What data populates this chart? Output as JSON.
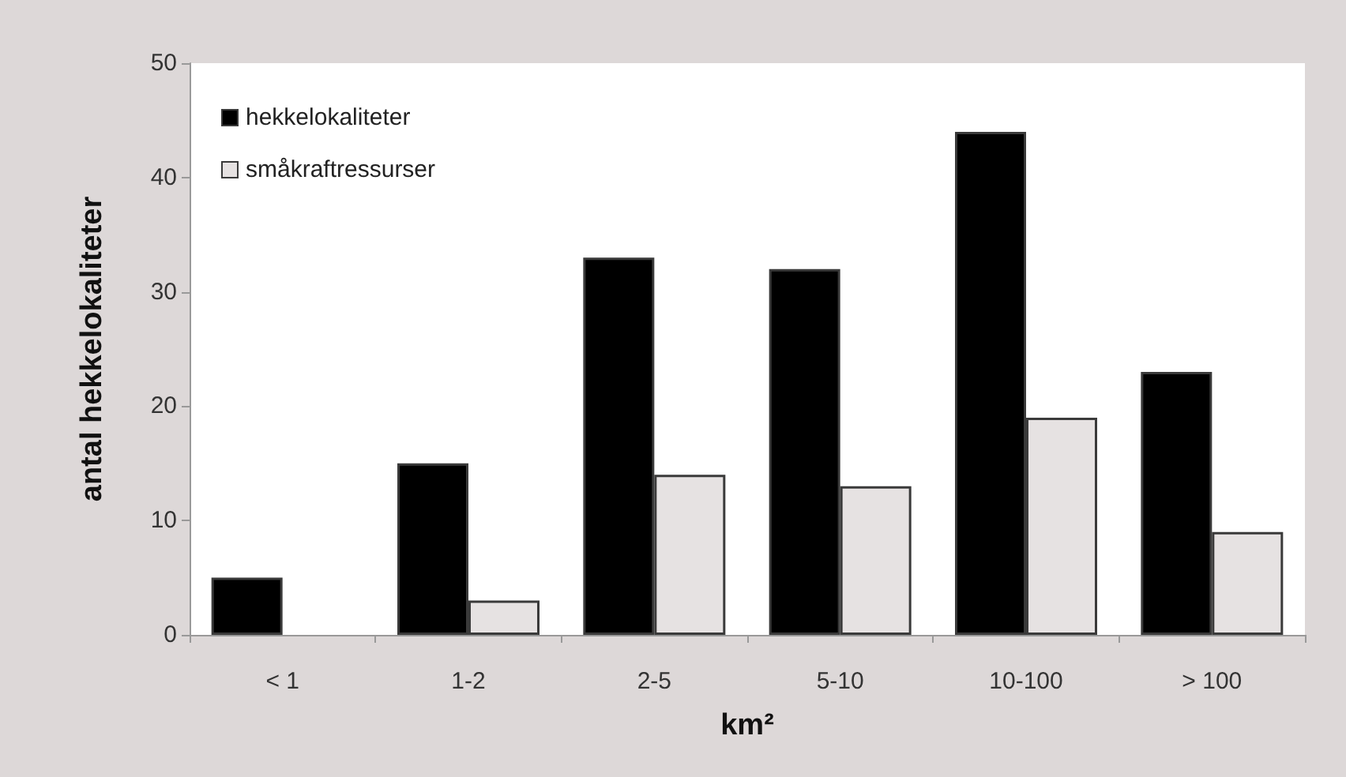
{
  "chart_data": {
    "type": "bar",
    "xlabel": "km²",
    "ylabel": "antal hekkelokaliteter",
    "categories": [
      "< 1",
      "1-2",
      "2-5",
      "5-10",
      "10-100",
      "> 100"
    ],
    "series": [
      {
        "name": "hekkelokaliteter",
        "color": "#000000",
        "values": [
          5,
          15,
          33,
          32,
          44,
          23
        ]
      },
      {
        "name": "småkraftressurser",
        "color": "#e6e2e2",
        "values": [
          null,
          3,
          14,
          13,
          19,
          9
        ]
      }
    ],
    "ylim": [
      0,
      50
    ],
    "yticks": [
      0,
      10,
      20,
      30,
      40,
      50
    ],
    "grid": false,
    "legend": "top left"
  }
}
